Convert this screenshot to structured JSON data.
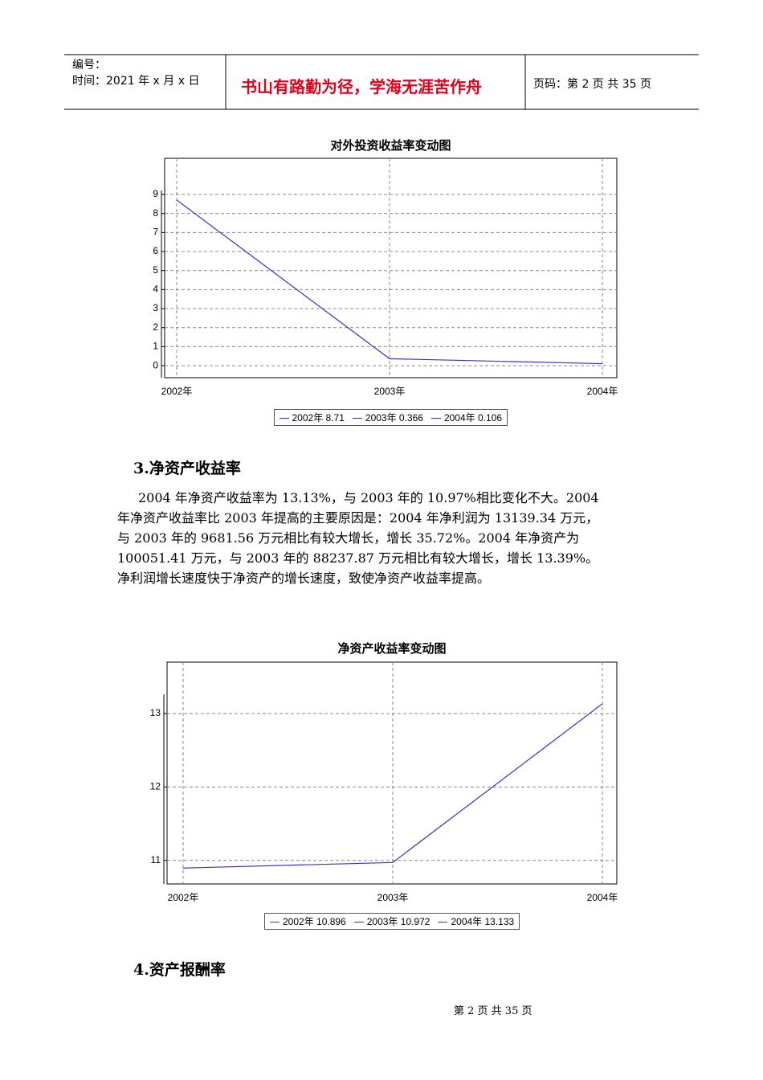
{
  "header": {
    "number": "编号：",
    "date": "时间：2021 年 x 月 x 日",
    "motto": "书山有路勤为径，学海无涯苦作舟",
    "page": "页码：第 2 页  共 35 页"
  },
  "chart_data": [
    {
      "type": "line",
      "title": "对外投资收益率变动图",
      "categories": [
        "2002年",
        "2003年",
        "2004年"
      ],
      "values": [
        8.71,
        0.366,
        0.106
      ],
      "color": "#3333cc",
      "ylim": [
        -0.63,
        10.9
      ],
      "yticks": [
        0,
        1,
        2,
        3,
        4,
        5,
        6,
        7,
        8,
        9
      ],
      "grid": true,
      "legend": [
        "2002年 8.71",
        "2003年 0.366",
        "2004年 0.106"
      ]
    },
    {
      "type": "line",
      "title": "净资产收益率变动图",
      "categories": [
        "2002年",
        "2003年",
        "2004年"
      ],
      "values": [
        10.896,
        10.972,
        13.133
      ],
      "color": "#3333cc",
      "ylim": [
        10.68,
        13.7
      ],
      "yticks": [
        11,
        12,
        13
      ],
      "grid": true,
      "legend": [
        "2002年 10.896",
        "2003年 10.972",
        "2004年 13.133"
      ]
    }
  ],
  "section3": {
    "heading": "3.净资产收益率",
    "lines": [
      "2004 年净资产收益率为 13.13%，与 2003 年的 10.97%相比变化不大。2004",
      "年净资产收益率比 2003 年提高的主要原因是：2004 年净利润为 13139.34 万元，",
      "与 2003 年的 9681.56 万元相比有较大增长，增长 35.72%。2004 年净资产为",
      "100051.41 万元，与 2003 年的 88237.87 万元相比有较大增长，增长 13.39%。",
      "净利润增长速度快于净资产的增长速度，致使净资产收益率提高。"
    ]
  },
  "section4": {
    "heading": "4.资产报酬率"
  },
  "footer": "第 2 页 共 35 页"
}
